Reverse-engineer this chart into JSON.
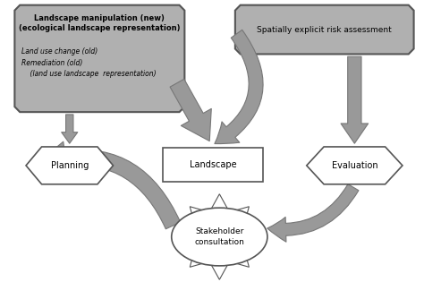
{
  "bg_color": "#ffffff",
  "box1_fc": "#b0b0b0",
  "box1_ec": "#555555",
  "box2_fc": "#b0b0b0",
  "box2_ec": "#555555",
  "arrow_fc": "#999999",
  "arrow_ec": "#777777",
  "shape_ec": "#555555",
  "box1_bold": "Landscape manipulation (new)\n(ecological landscape representation)",
  "box1_italic": "Land use change (old)\nRemediation (old)\n    (land use landscape  representation)",
  "box2_text": "Spatially explicit risk assessment",
  "planning_text": "Planning",
  "landscape_text": "Landscape",
  "evaluation_text": "Evaluation",
  "stakeholder_text": "Stakeholder\nconsultation"
}
